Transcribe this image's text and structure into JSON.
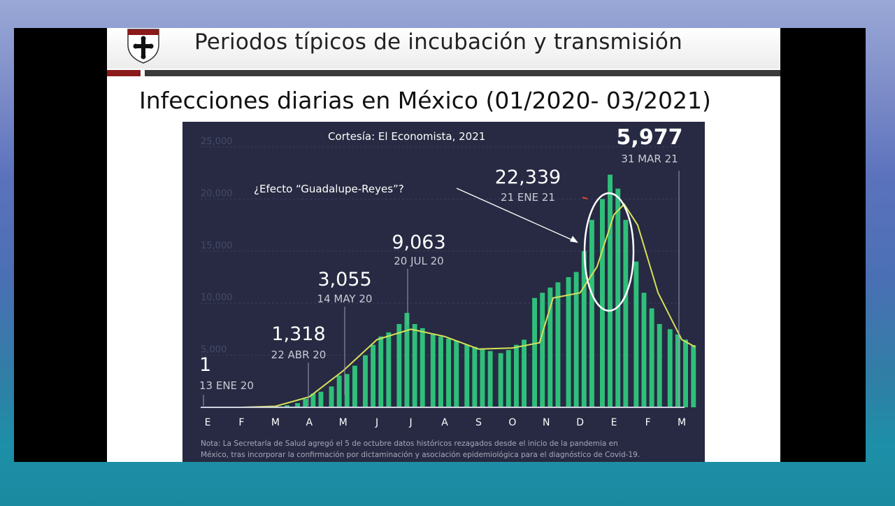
{
  "slide": {
    "title": "Periodos típicos de incubación y transmisión",
    "headline": "Infecciones diarias en México (01/2020- 03/2021)"
  },
  "colors": {
    "chart_background": "#272a42",
    "bars": "#2fbf7a",
    "trend_line": "#d6e05a",
    "header_red": "#8b1a1a"
  },
  "chart_data": {
    "type": "bar",
    "credit": "Cortesía: El Economista, 2021",
    "ylim": [
      0,
      25000
    ],
    "y_ticks": [
      {
        "value": 5000,
        "label": "5,000"
      },
      {
        "value": 10000,
        "label": "10,000"
      },
      {
        "value": 15000,
        "label": "15,000"
      },
      {
        "value": 20000,
        "label": "20,000"
      },
      {
        "value": 25000,
        "label": "25,000"
      }
    ],
    "x_months": [
      "E",
      "F",
      "M",
      "A",
      "M",
      "J",
      "J",
      "A",
      "S",
      "O",
      "N",
      "D",
      "E",
      "F",
      "M"
    ],
    "monthly_bars": [
      {
        "month": "E",
        "values": [
          0,
          1,
          0,
          0
        ]
      },
      {
        "month": "F",
        "values": [
          0,
          0,
          2,
          3
        ]
      },
      {
        "month": "M",
        "values": [
          10,
          40,
          90,
          200
        ]
      },
      {
        "month": "A",
        "values": [
          400,
          800,
          1318,
          1500
        ]
      },
      {
        "month": "M",
        "values": [
          2000,
          3055,
          3200,
          4000
        ]
      },
      {
        "month": "J",
        "values": [
          5000,
          6000,
          6800,
          7200
        ]
      },
      {
        "month": "J",
        "values": [
          8000,
          9063,
          8000,
          7600
        ]
      },
      {
        "month": "A",
        "values": [
          7000,
          6800,
          6600,
          6400
        ]
      },
      {
        "month": "S",
        "values": [
          6000,
          5800,
          5600,
          5400
        ]
      },
      {
        "month": "O",
        "values": [
          5200,
          5500,
          6000,
          6500
        ]
      },
      {
        "month": "N",
        "values": [
          10500,
          11000,
          11500,
          12000
        ]
      },
      {
        "month": "D",
        "values": [
          12500,
          13000,
          15000,
          18000
        ]
      },
      {
        "month": "E",
        "values": [
          20000,
          22339,
          21000,
          18000
        ]
      },
      {
        "month": "F",
        "values": [
          14000,
          11000,
          9500,
          8000
        ]
      },
      {
        "month": "M",
        "values": [
          7500,
          7000,
          6500,
          5977
        ]
      }
    ],
    "trend": [
      {
        "x": 0,
        "y": 0
      },
      {
        "x": 1,
        "y": 0
      },
      {
        "x": 2,
        "y": 100
      },
      {
        "x": 3,
        "y": 1000
      },
      {
        "x": 4,
        "y": 3500
      },
      {
        "x": 5,
        "y": 6500
      },
      {
        "x": 6,
        "y": 7500
      },
      {
        "x": 7,
        "y": 6800
      },
      {
        "x": 8,
        "y": 5600
      },
      {
        "x": 9,
        "y": 5700
      },
      {
        "x": 9.8,
        "y": 6200
      },
      {
        "x": 10.2,
        "y": 10500
      },
      {
        "x": 11,
        "y": 11000
      },
      {
        "x": 11.5,
        "y": 13500
      },
      {
        "x": 12,
        "y": 18500
      },
      {
        "x": 12.3,
        "y": 19500
      },
      {
        "x": 12.7,
        "y": 17500
      },
      {
        "x": 13.3,
        "y": 11000
      },
      {
        "x": 14,
        "y": 6500
      },
      {
        "x": 14.4,
        "y": 5800
      }
    ],
    "annotations": [
      {
        "value": "1",
        "date": "13 ENE 20"
      },
      {
        "value": "1,318",
        "date": "22 ABR 20"
      },
      {
        "value": "3,055",
        "date": "14 MAY 20"
      },
      {
        "value": "9,063",
        "date": "20 JUL 20"
      },
      {
        "value": "22,339",
        "date": "21 ENE 21"
      },
      {
        "value": "5,977",
        "date": "31 MAR 21"
      }
    ],
    "callout": "¿Efecto “Guadalupe-Reyes”?",
    "note_lines": [
      "Nota: La Secretaría de Salud agregó el 5 de octubre datos históricos rezagados desde el inicio de la pandemia en",
      "México, tras incorporar la confirmación por dictaminación y asociación epidemiológica para el diagnóstico de Covid-19."
    ]
  }
}
